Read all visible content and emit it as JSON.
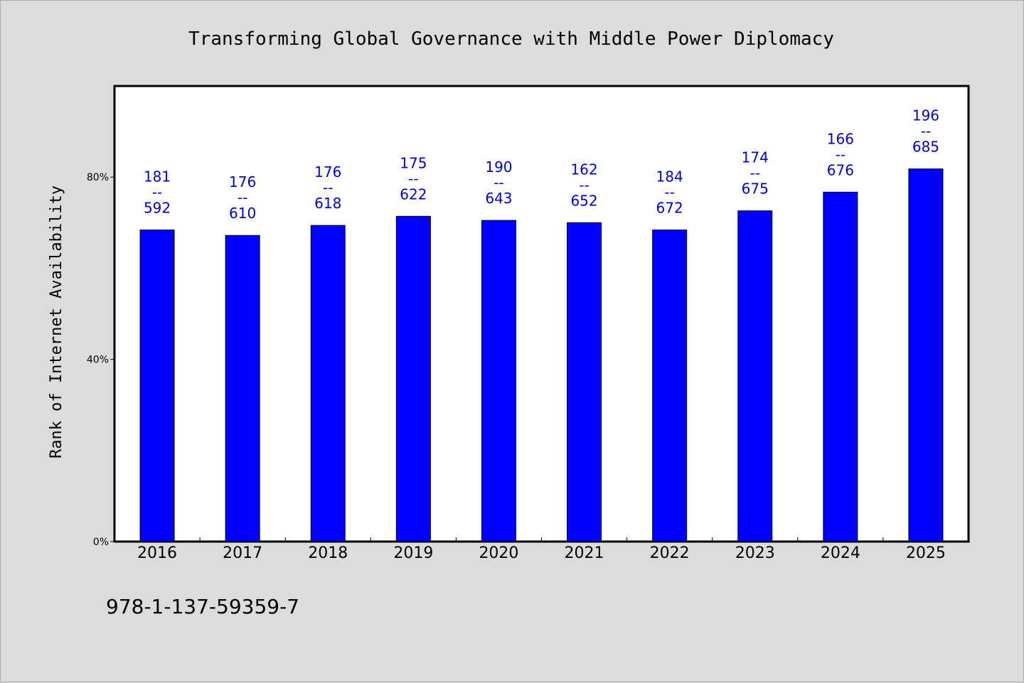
{
  "chart_data": {
    "type": "bar",
    "title": "Transforming Global Governance with Middle Power Diplomacy",
    "ylabel": "Rank of Internet Availability",
    "xlabel": "",
    "categories": [
      "2016",
      "2017",
      "2018",
      "2019",
      "2020",
      "2021",
      "2022",
      "2023",
      "2024",
      "2025"
    ],
    "values": [
      0.684,
      0.672,
      0.694,
      0.714,
      0.705,
      0.7,
      0.684,
      0.726,
      0.767,
      0.818
    ],
    "data_labels": [
      {
        "top": "181",
        "mid": "--",
        "bottom": "592"
      },
      {
        "top": "176",
        "mid": "--",
        "bottom": "610"
      },
      {
        "top": "176",
        "mid": "--",
        "bottom": "618"
      },
      {
        "top": "175",
        "mid": "--",
        "bottom": "622"
      },
      {
        "top": "190",
        "mid": "--",
        "bottom": "643"
      },
      {
        "top": "162",
        "mid": "--",
        "bottom": "652"
      },
      {
        "top": "184",
        "mid": "--",
        "bottom": "672"
      },
      {
        "top": "174",
        "mid": "--",
        "bottom": "675"
      },
      {
        "top": "166",
        "mid": "--",
        "bottom": "676"
      },
      {
        "top": "196",
        "mid": "--",
        "bottom": "685"
      }
    ],
    "ylim": [
      0,
      1.0
    ],
    "yticks": [
      0,
      0.4,
      0.8
    ],
    "ytick_labels": [
      "0%",
      "40%",
      "80%"
    ],
    "grid": false,
    "legend": "none",
    "bar_color": "#0000ff",
    "label_color": "#0000cc"
  },
  "footnote": "978-1-137-59359-7"
}
